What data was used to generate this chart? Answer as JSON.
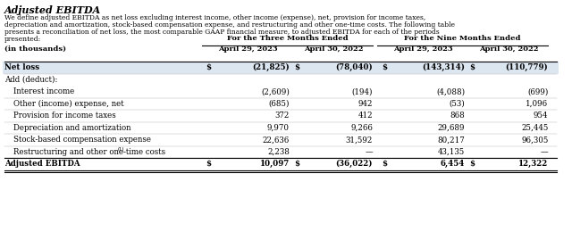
{
  "title": "Adjusted EBITDA",
  "desc_lines": [
    "We define adjusted EBITDA as net loss excluding interest income, other income (expense), net, provision for income taxes,",
    "depreciation and amortization, stock-based compensation expense, and restructuring and other one-time costs. The following table",
    "presents a reconciliation of net loss, the most comparable GAAP financial measure, to adjusted EBITDA for each of the periods",
    "presented:"
  ],
  "col_group1_label": "For the Three Months Ended",
  "col_group2_label": "For the Nine Months Ended",
  "col_headers": [
    "April 29, 2023",
    "April 30, 2022",
    "April 29, 2023",
    "April 30, 2022"
  ],
  "row_label_header": "(in thousands)",
  "rows": [
    {
      "label": "Net loss",
      "values": [
        "$",
        "(21,825)",
        "$",
        "(78,040)",
        "$",
        "(143,314)",
        "$",
        "(110,779)"
      ],
      "bold": true,
      "shaded": true,
      "indent": false,
      "header_row": false,
      "bottom_row": false,
      "superscript": false
    },
    {
      "label": "Add (deduct):",
      "values": [
        "",
        "",
        "",
        "",
        "",
        "",
        "",
        ""
      ],
      "bold": false,
      "shaded": false,
      "indent": false,
      "header_row": true,
      "bottom_row": false,
      "superscript": false
    },
    {
      "label": "Interest income",
      "values": [
        "",
        "(2,609)",
        "",
        "(194)",
        "",
        "(4,088)",
        "",
        "(699)"
      ],
      "bold": false,
      "shaded": false,
      "indent": true,
      "header_row": false,
      "bottom_row": false,
      "superscript": false
    },
    {
      "label": "Other (income) expense, net",
      "values": [
        "",
        "(685)",
        "",
        "942",
        "",
        "(53)",
        "",
        "1,096"
      ],
      "bold": false,
      "shaded": false,
      "indent": true,
      "header_row": false,
      "bottom_row": false,
      "superscript": false
    },
    {
      "label": "Provision for income taxes",
      "values": [
        "",
        "372",
        "",
        "412",
        "",
        "868",
        "",
        "954"
      ],
      "bold": false,
      "shaded": false,
      "indent": true,
      "header_row": false,
      "bottom_row": false,
      "superscript": false
    },
    {
      "label": "Depreciation and amortization",
      "values": [
        "",
        "9,970",
        "",
        "9,266",
        "",
        "29,689",
        "",
        "25,445"
      ],
      "bold": false,
      "shaded": false,
      "indent": true,
      "header_row": false,
      "bottom_row": false,
      "superscript": false
    },
    {
      "label": "Stock-based compensation expense",
      "values": [
        "",
        "22,636",
        "",
        "31,592",
        "",
        "80,217",
        "",
        "96,305"
      ],
      "bold": false,
      "shaded": false,
      "indent": true,
      "header_row": false,
      "bottom_row": false,
      "superscript": false
    },
    {
      "label": "Restructuring and other one-time costs",
      "values": [
        "",
        "2,238",
        "",
        "—",
        "",
        "43,135",
        "",
        "—"
      ],
      "bold": false,
      "shaded": false,
      "indent": true,
      "header_row": false,
      "bottom_row": false,
      "superscript": true
    },
    {
      "label": "Adjusted EBITDA",
      "values": [
        "$",
        "10,097",
        "$",
        "(36,022)",
        "$",
        "6,454",
        "$",
        "12,322"
      ],
      "bold": true,
      "shaded": false,
      "indent": false,
      "header_row": false,
      "bottom_row": true,
      "superscript": false
    }
  ],
  "shaded_color": "#dce6f1",
  "bg_color": "#ffffff",
  "text_color": "#000000",
  "title_font_size": 8,
  "body_font_size": 6.2,
  "header_font_size": 6.0,
  "desc_font_size": 5.5
}
